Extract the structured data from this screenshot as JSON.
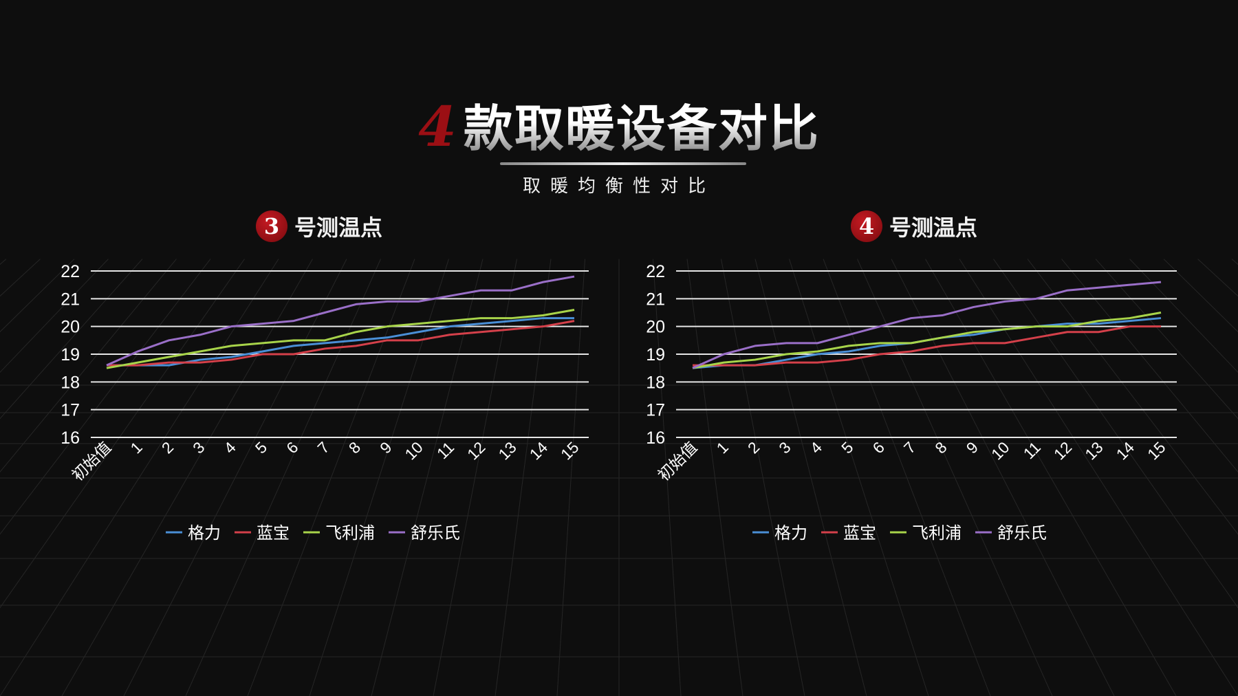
{
  "header": {
    "number": "4",
    "title": "款取暖设备对比",
    "subtitle": "取暖均衡性对比"
  },
  "colors": {
    "格力": "#4a8fd6",
    "蓝宝": "#d4404a",
    "飞利浦": "#a8d44a",
    "舒乐氏": "#9a6fc8",
    "badge": "#9b0f14"
  },
  "chart_data": [
    {
      "type": "line",
      "title": "号测温点",
      "badge": "3",
      "categories": [
        "初始值",
        "1",
        "2",
        "3",
        "4",
        "5",
        "6",
        "7",
        "8",
        "9",
        "10",
        "11",
        "12",
        "13",
        "14",
        "15"
      ],
      "ylim": [
        16,
        22
      ],
      "yticks": [
        16,
        17,
        18,
        19,
        20,
        21,
        22
      ],
      "grid": true,
      "legend_position": "bottom",
      "series": [
        {
          "name": "格力",
          "values": [
            18.6,
            18.6,
            18.6,
            18.8,
            18.9,
            19.1,
            19.3,
            19.4,
            19.5,
            19.6,
            19.8,
            20.0,
            20.1,
            20.2,
            20.3,
            20.3
          ]
        },
        {
          "name": "蓝宝",
          "values": [
            18.6,
            18.6,
            18.7,
            18.7,
            18.8,
            19.0,
            19.0,
            19.2,
            19.3,
            19.5,
            19.5,
            19.7,
            19.8,
            19.9,
            20.0,
            20.2
          ]
        },
        {
          "name": "飞利浦",
          "values": [
            18.5,
            18.7,
            18.9,
            19.1,
            19.3,
            19.4,
            19.5,
            19.5,
            19.8,
            20.0,
            20.1,
            20.2,
            20.3,
            20.3,
            20.4,
            20.6
          ]
        },
        {
          "name": "舒乐氏",
          "values": [
            18.6,
            19.1,
            19.5,
            19.7,
            20.0,
            20.1,
            20.2,
            20.5,
            20.8,
            20.9,
            20.9,
            21.1,
            21.3,
            21.3,
            21.6,
            21.8
          ]
        }
      ]
    },
    {
      "type": "line",
      "title": "号测温点",
      "badge": "4",
      "categories": [
        "初始值",
        "1",
        "2",
        "3",
        "4",
        "5",
        "6",
        "7",
        "8",
        "9",
        "10",
        "11",
        "12",
        "13",
        "14",
        "15"
      ],
      "ylim": [
        16,
        22
      ],
      "yticks": [
        16,
        17,
        18,
        19,
        20,
        21,
        22
      ],
      "grid": true,
      "legend_position": "bottom",
      "series": [
        {
          "name": "格力",
          "values": [
            18.5,
            18.6,
            18.6,
            18.8,
            19.0,
            19.1,
            19.3,
            19.4,
            19.6,
            19.7,
            19.9,
            20.0,
            20.1,
            20.1,
            20.2,
            20.3
          ]
        },
        {
          "name": "蓝宝",
          "values": [
            18.6,
            18.6,
            18.6,
            18.7,
            18.7,
            18.8,
            19.0,
            19.1,
            19.3,
            19.4,
            19.4,
            19.6,
            19.8,
            19.8,
            20.0,
            20.0
          ]
        },
        {
          "name": "飞利浦",
          "values": [
            18.5,
            18.7,
            18.8,
            19.0,
            19.1,
            19.3,
            19.4,
            19.4,
            19.6,
            19.8,
            19.9,
            20.0,
            20.0,
            20.2,
            20.3,
            20.5
          ]
        },
        {
          "name": "舒乐氏",
          "values": [
            18.5,
            19.0,
            19.3,
            19.4,
            19.4,
            19.7,
            20.0,
            20.3,
            20.4,
            20.7,
            20.9,
            21.0,
            21.3,
            21.4,
            21.5,
            21.6
          ]
        }
      ]
    }
  ]
}
